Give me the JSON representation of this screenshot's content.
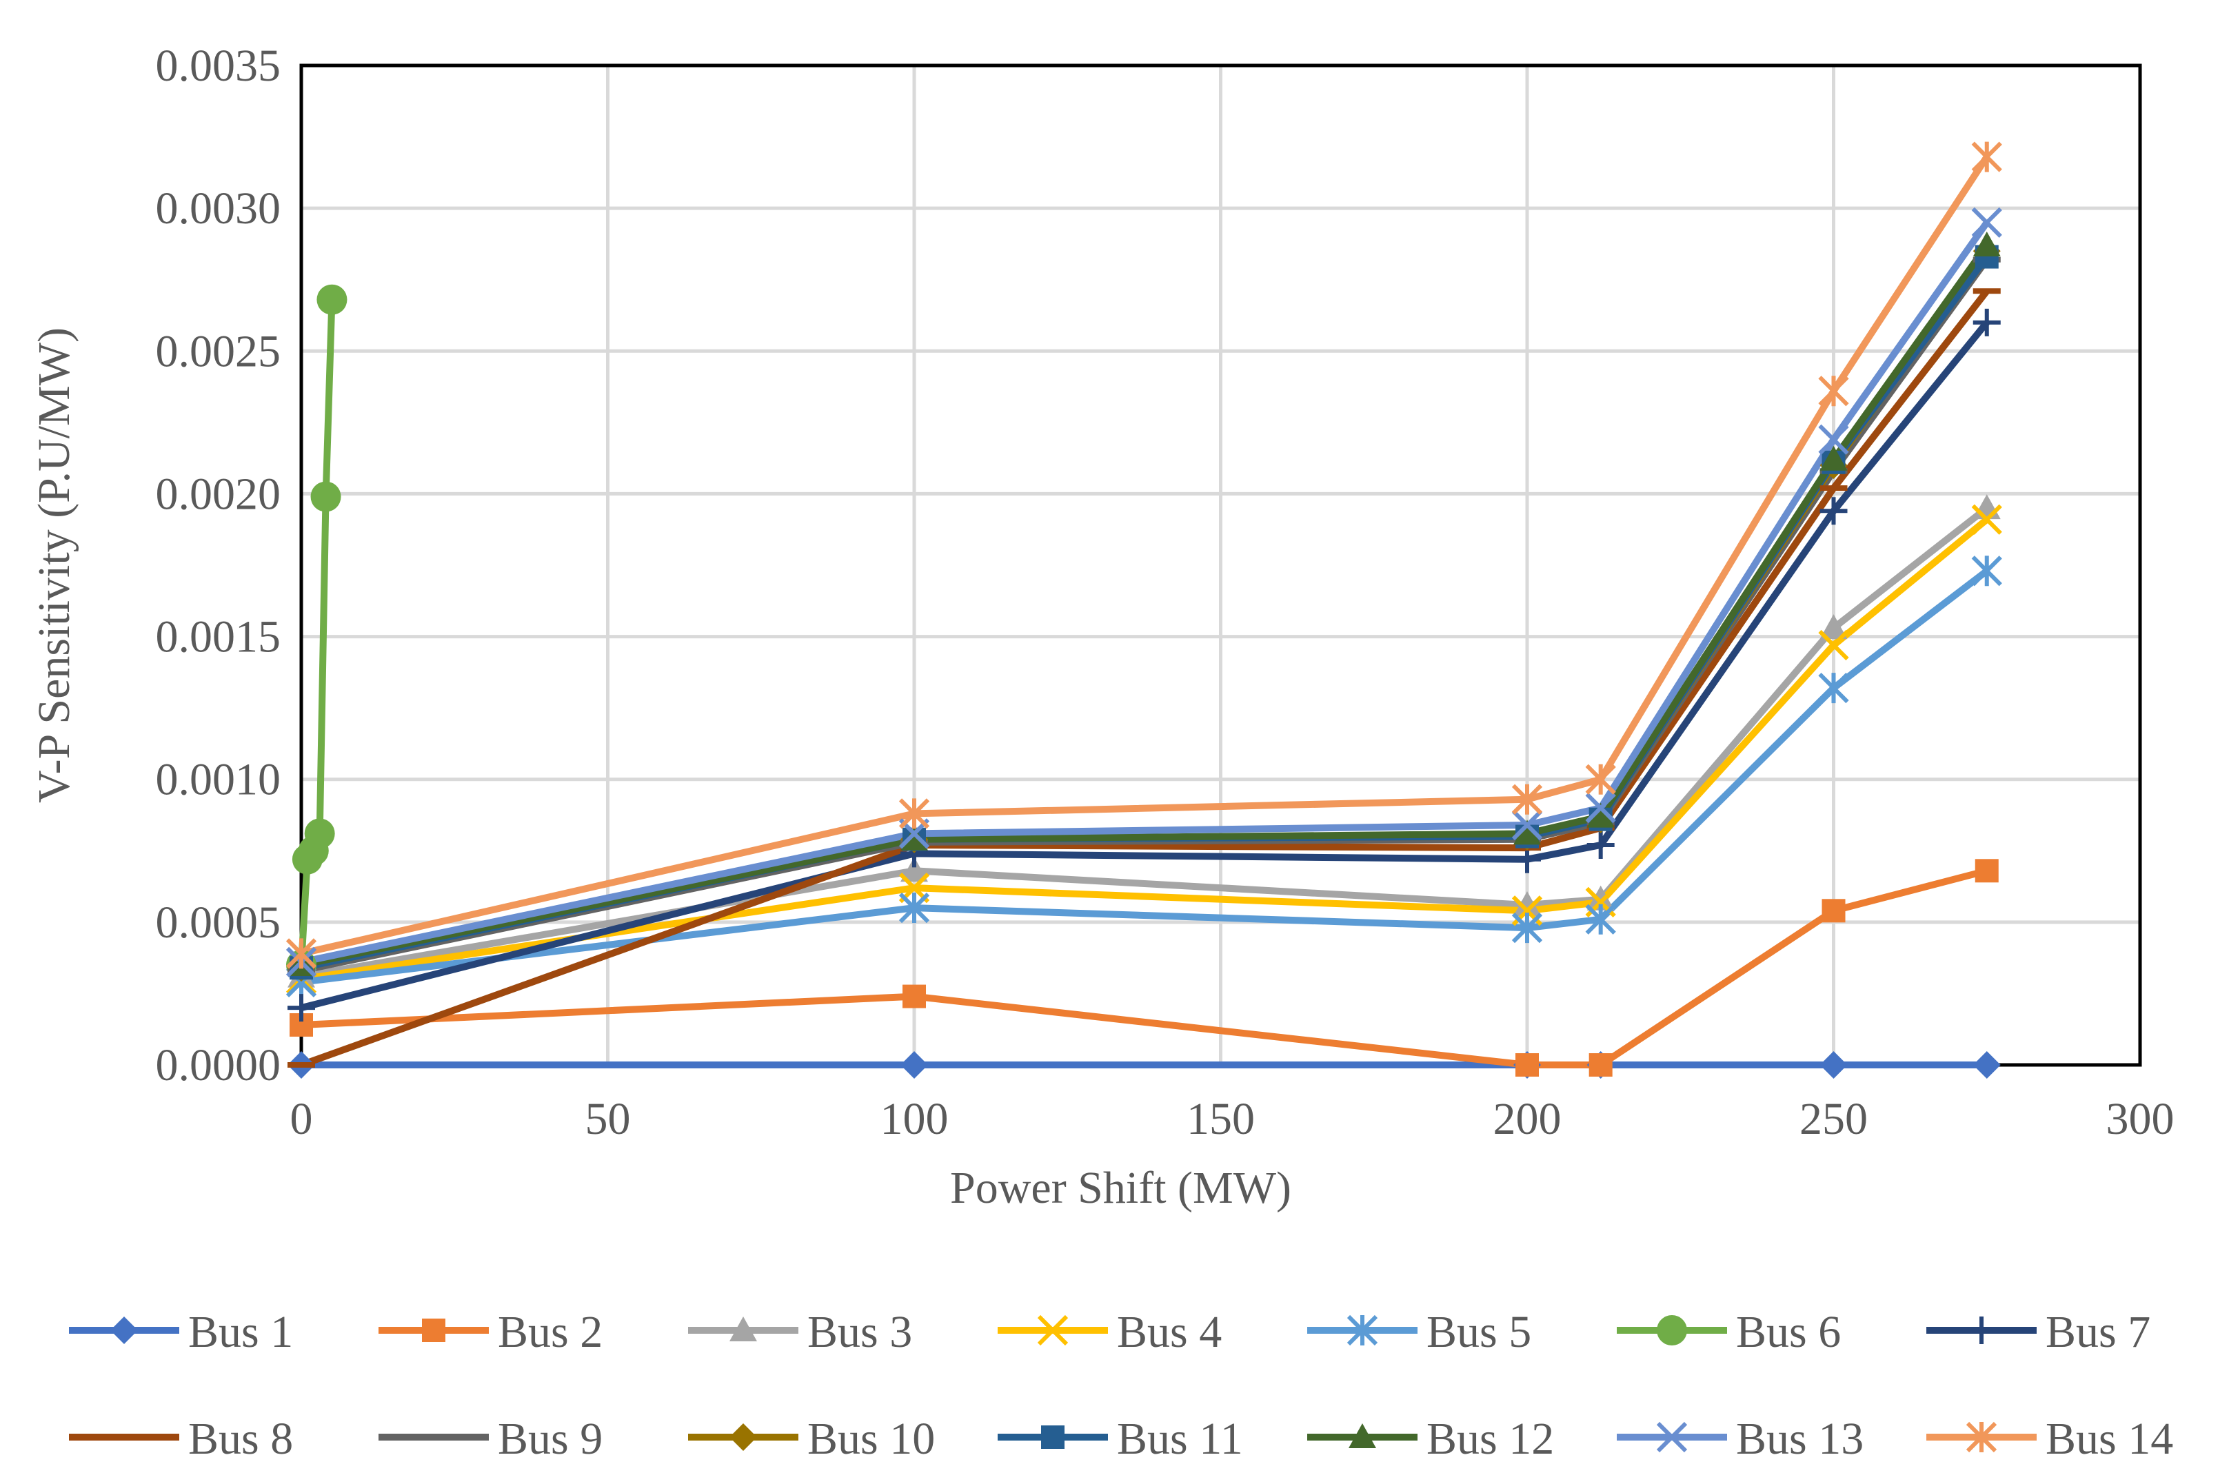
{
  "chart_data": {
    "type": "line",
    "xlabel": "Power Shift (MW)",
    "ylabel": "V-P Sensitivity (P.U/MW)",
    "xlim": [
      0,
      300
    ],
    "ylim": [
      0,
      0.0035
    ],
    "x_ticks": [
      0,
      50,
      100,
      150,
      200,
      250,
      300
    ],
    "x_tick_labels": [
      "0",
      "50",
      "100",
      "150",
      "200",
      "250",
      "300"
    ],
    "y_ticks": [
      0,
      0.0005,
      0.001,
      0.0015,
      0.002,
      0.0025,
      0.003,
      0.0035
    ],
    "y_tick_labels": [
      "0.0000",
      "0.0005",
      "0.0010",
      "0.0015",
      "0.0020",
      "0.0025",
      "0.0030",
      "0.0035"
    ],
    "grid": true,
    "legend_position": "bottom",
    "series": [
      {
        "name": "Bus 1",
        "color": "#4472C4",
        "marker": "diamond",
        "x": [
          0,
          100,
          200,
          212,
          250,
          275
        ],
        "y": [
          0,
          0,
          0,
          0,
          0,
          0
        ]
      },
      {
        "name": "Bus 2",
        "color": "#ED7D31",
        "marker": "square",
        "x": [
          0,
          100,
          200,
          212,
          250,
          275
        ],
        "y": [
          0.00014,
          0.00024,
          0,
          0,
          0.00054,
          0.00068
        ]
      },
      {
        "name": "Bus 3",
        "color": "#A5A5A5",
        "marker": "triangle",
        "x": [
          0,
          100,
          200,
          212,
          250,
          275
        ],
        "y": [
          0.00031,
          0.00068,
          0.00056,
          0.00058,
          0.00153,
          0.00195
        ]
      },
      {
        "name": "Bus 4",
        "color": "#FFC000",
        "marker": "x",
        "x": [
          0,
          100,
          200,
          212,
          250,
          275
        ],
        "y": [
          0.0003,
          0.00062,
          0.00054,
          0.00057,
          0.00147,
          0.00191
        ]
      },
      {
        "name": "Bus 5",
        "color": "#5B9BD5",
        "marker": "asterisk",
        "x": [
          0,
          100,
          200,
          212,
          250,
          275
        ],
        "y": [
          0.00029,
          0.00055,
          0.00048,
          0.00051,
          0.00132,
          0.00173
        ]
      },
      {
        "name": "Bus 6",
        "color": "#70AD47",
        "marker": "circle",
        "x": [
          0,
          1,
          2,
          3,
          4,
          5
        ],
        "y": [
          0.00035,
          0.00072,
          0.00075,
          0.00081,
          0.00199,
          0.00268
        ]
      },
      {
        "name": "Bus 7",
        "color": "#264478",
        "marker": "plus",
        "x": [
          0,
          100,
          200,
          212,
          250,
          275
        ],
        "y": [
          0.0002,
          0.00074,
          0.00072,
          0.00077,
          0.00194,
          0.0026
        ]
      },
      {
        "name": "Bus 8",
        "color": "#9E480E",
        "marker": "dash",
        "x": [
          0,
          100,
          200,
          212,
          250,
          275
        ],
        "y": [
          0,
          0.00077,
          0.00076,
          0.00083,
          0.00202,
          0.00271
        ]
      },
      {
        "name": "Bus 9",
        "color": "#636363",
        "marker": "dash",
        "x": [
          0,
          100,
          200,
          212,
          250,
          275
        ],
        "y": [
          0.00033,
          0.00078,
          0.00079,
          0.00085,
          0.00208,
          0.00282
        ]
      },
      {
        "name": "Bus 10",
        "color": "#997300",
        "marker": "diamond",
        "x": [
          0,
          100,
          200,
          212,
          250,
          275
        ],
        "y": [
          0.00034,
          0.00079,
          0.0008,
          0.00086,
          0.0021,
          0.00285
        ]
      },
      {
        "name": "Bus 11",
        "color": "#255E91",
        "marker": "square",
        "x": [
          0,
          100,
          200,
          212,
          250,
          275
        ],
        "y": [
          0.00034,
          0.00079,
          0.0008,
          0.00086,
          0.00211,
          0.00283
        ]
      },
      {
        "name": "Bus 12",
        "color": "#43682B",
        "marker": "triangle",
        "x": [
          0,
          100,
          200,
          212,
          250,
          275
        ],
        "y": [
          0.00035,
          0.00079,
          0.00081,
          0.00087,
          0.00212,
          0.00287
        ]
      },
      {
        "name": "Bus 13",
        "color": "#698ED0",
        "marker": "x",
        "x": [
          0,
          100,
          200,
          212,
          250,
          275
        ],
        "y": [
          0.00036,
          0.00081,
          0.00084,
          0.0009,
          0.00219,
          0.00295
        ]
      },
      {
        "name": "Bus 14",
        "color": "#F1975A",
        "marker": "asterisk",
        "x": [
          0,
          100,
          200,
          212,
          250,
          275
        ],
        "y": [
          0.00039,
          0.00088,
          0.00093,
          0.001,
          0.00236,
          0.00318
        ]
      }
    ]
  }
}
